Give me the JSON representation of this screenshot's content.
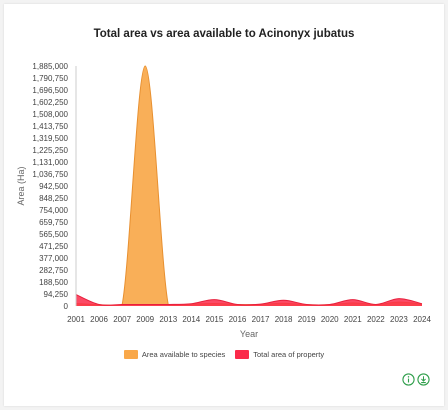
{
  "chart_data": {
    "type": "area",
    "title": "Total area vs area available to Acinonyx jubatus",
    "xlabel": "Year",
    "ylabel": "Area (Ha)",
    "ylim": [
      0,
      1885000
    ],
    "yticks": [
      "0",
      "94,250",
      "188,500",
      "282,750",
      "377,000",
      "471,250",
      "565,500",
      "659,750",
      "754,000",
      "848,250",
      "942,500",
      "1,036,750",
      "1,131,000",
      "1,225,250",
      "1,319,500",
      "1,413,750",
      "1,508,000",
      "1,602,250",
      "1,696,500",
      "1,790,750",
      "1,885,000"
    ],
    "categories": [
      "2001",
      "2006",
      "2007",
      "2009",
      "2013",
      "2014",
      "2015",
      "2016",
      "2017",
      "2018",
      "2019",
      "2020",
      "2021",
      "2022",
      "2023",
      "2024"
    ],
    "series": [
      {
        "name": "Area available to species",
        "color": "#f9a84a",
        "values": [
          20000,
          10000,
          10000,
          1885000,
          10000,
          15000,
          20000,
          12000,
          12000,
          22000,
          10000,
          10000,
          25000,
          12000,
          30000,
          15000
        ]
      },
      {
        "name": "Total area of property",
        "color": "#fb2a4a",
        "values": [
          90000,
          12000,
          12000,
          12000,
          12000,
          18000,
          50000,
          12000,
          15000,
          45000,
          12000,
          12000,
          50000,
          12000,
          58000,
          18000
        ]
      }
    ],
    "grid": false,
    "legend": "bottom"
  },
  "icons": {
    "info": "info-icon",
    "download": "download-icon"
  }
}
